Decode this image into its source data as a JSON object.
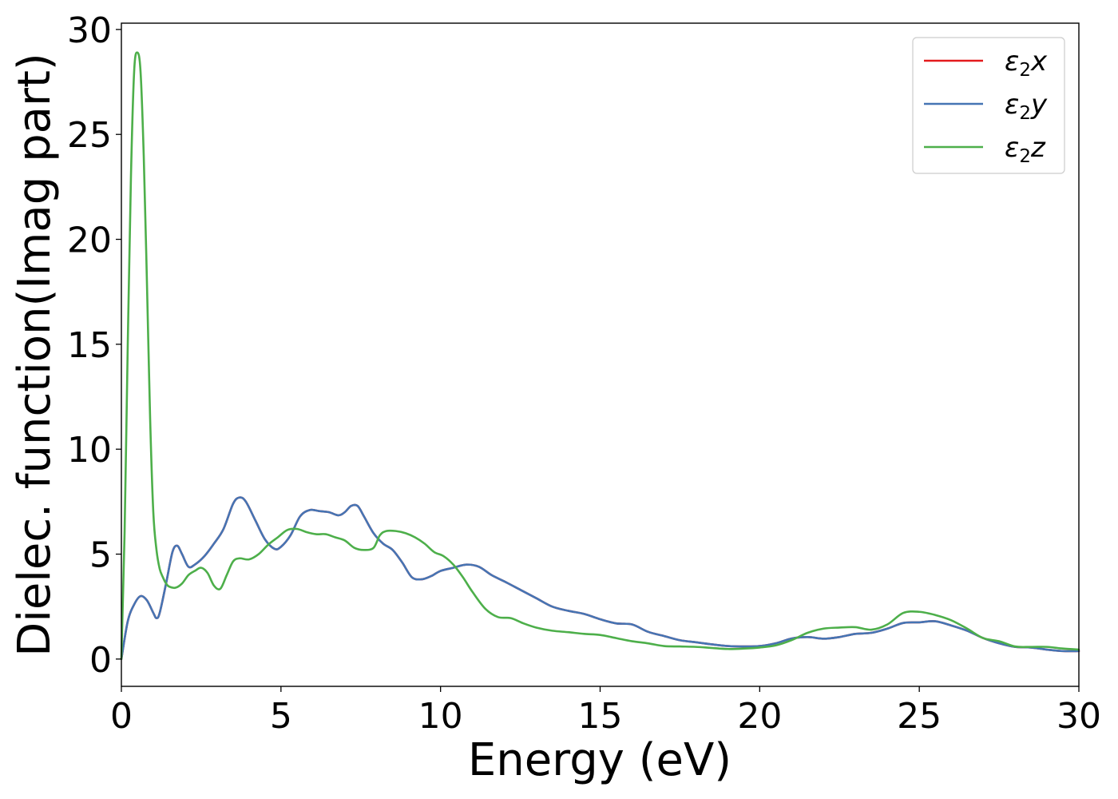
{
  "chart_data": {
    "type": "line",
    "title": "",
    "xlabel": "Energy (eV)",
    "ylabel": "Dielec. function(Imag part)",
    "xlim": [
      0,
      30
    ],
    "ylim": [
      -1.3,
      30.3
    ],
    "xticks": [
      0,
      5,
      10,
      15,
      20,
      25,
      30
    ],
    "yticks": [
      0,
      5,
      10,
      15,
      20,
      25,
      30
    ],
    "grid": false,
    "legend_position": "top-right",
    "series": [
      {
        "name": "ε2x",
        "label_base": "ε",
        "label_sub": "2",
        "label_var": "x",
        "color": "#e31a1c",
        "x": [
          0,
          0.2,
          0.4,
          0.6,
          0.8,
          1.0,
          1.1,
          1.2,
          1.4,
          1.6,
          1.75,
          1.9,
          2.1,
          2.3,
          2.6,
          2.9,
          3.2,
          3.5,
          3.7,
          3.9,
          4.2,
          4.5,
          4.8,
          5.0,
          5.3,
          5.6,
          5.9,
          6.2,
          6.5,
          6.8,
          7.0,
          7.2,
          7.4,
          7.6,
          7.9,
          8.2,
          8.5,
          8.8,
          9.1,
          9.4,
          9.7,
          10.0,
          10.4,
          10.8,
          11.2,
          11.6,
          12.0,
          12.5,
          13.0,
          13.5,
          14.0,
          14.5,
          15.0,
          15.5,
          16.0,
          16.5,
          17.0,
          17.5,
          18.0,
          18.5,
          19.0,
          19.5,
          20.0,
          20.5,
          21.0,
          21.5,
          22.0,
          22.5,
          23.0,
          23.5,
          24.0,
          24.5,
          25.0,
          25.5,
          26.0,
          26.5,
          27.0,
          27.5,
          28.0,
          28.5,
          29.0,
          29.5,
          30.0
        ],
        "y": [
          0,
          1.8,
          2.6,
          3.0,
          2.8,
          2.2,
          1.95,
          2.2,
          3.6,
          5.1,
          5.4,
          5.0,
          4.4,
          4.5,
          4.9,
          5.5,
          6.2,
          7.4,
          7.7,
          7.5,
          6.6,
          5.7,
          5.25,
          5.35,
          5.9,
          6.8,
          7.1,
          7.05,
          7.0,
          6.85,
          7.0,
          7.3,
          7.3,
          6.8,
          6.0,
          5.5,
          5.2,
          4.6,
          3.9,
          3.8,
          3.95,
          4.2,
          4.35,
          4.5,
          4.4,
          4.0,
          3.7,
          3.3,
          2.9,
          2.5,
          2.3,
          2.15,
          1.9,
          1.7,
          1.65,
          1.3,
          1.1,
          0.9,
          0.8,
          0.7,
          0.62,
          0.6,
          0.62,
          0.75,
          0.98,
          1.05,
          0.97,
          1.05,
          1.2,
          1.25,
          1.45,
          1.72,
          1.75,
          1.8,
          1.6,
          1.35,
          1.0,
          0.75,
          0.58,
          0.55,
          0.45,
          0.38,
          0.38
        ]
      },
      {
        "name": "ε2y",
        "label_base": "ε",
        "label_sub": "2",
        "label_var": "y",
        "color": "#4575b4",
        "x": [
          0,
          0.2,
          0.4,
          0.6,
          0.8,
          1.0,
          1.1,
          1.2,
          1.4,
          1.6,
          1.75,
          1.9,
          2.1,
          2.3,
          2.6,
          2.9,
          3.2,
          3.5,
          3.7,
          3.9,
          4.2,
          4.5,
          4.8,
          5.0,
          5.3,
          5.6,
          5.9,
          6.2,
          6.5,
          6.8,
          7.0,
          7.2,
          7.4,
          7.6,
          7.9,
          8.2,
          8.5,
          8.8,
          9.1,
          9.4,
          9.7,
          10.0,
          10.4,
          10.8,
          11.2,
          11.6,
          12.0,
          12.5,
          13.0,
          13.5,
          14.0,
          14.5,
          15.0,
          15.5,
          16.0,
          16.5,
          17.0,
          17.5,
          18.0,
          18.5,
          19.0,
          19.5,
          20.0,
          20.5,
          21.0,
          21.5,
          22.0,
          22.5,
          23.0,
          23.5,
          24.0,
          24.5,
          25.0,
          25.5,
          26.0,
          26.5,
          27.0,
          27.5,
          28.0,
          28.5,
          29.0,
          29.5,
          30.0
        ],
        "y": [
          0,
          1.8,
          2.6,
          3.0,
          2.8,
          2.2,
          1.95,
          2.2,
          3.6,
          5.1,
          5.4,
          5.0,
          4.4,
          4.5,
          4.9,
          5.5,
          6.2,
          7.4,
          7.7,
          7.5,
          6.6,
          5.7,
          5.25,
          5.35,
          5.9,
          6.8,
          7.1,
          7.05,
          7.0,
          6.85,
          7.0,
          7.3,
          7.3,
          6.8,
          6.0,
          5.5,
          5.2,
          4.6,
          3.9,
          3.8,
          3.95,
          4.2,
          4.35,
          4.5,
          4.4,
          4.0,
          3.7,
          3.3,
          2.9,
          2.5,
          2.3,
          2.15,
          1.9,
          1.7,
          1.65,
          1.3,
          1.1,
          0.9,
          0.8,
          0.7,
          0.62,
          0.6,
          0.62,
          0.75,
          0.98,
          1.05,
          0.97,
          1.05,
          1.2,
          1.25,
          1.45,
          1.72,
          1.75,
          1.8,
          1.6,
          1.35,
          1.0,
          0.75,
          0.58,
          0.55,
          0.45,
          0.38,
          0.38
        ]
      },
      {
        "name": "ε2z",
        "label_base": "ε",
        "label_sub": "2",
        "label_var": "z",
        "color": "#4daf4a",
        "x": [
          0,
          0.1,
          0.2,
          0.3,
          0.4,
          0.5,
          0.6,
          0.7,
          0.8,
          0.9,
          1.0,
          1.1,
          1.2,
          1.3,
          1.4,
          1.5,
          1.7,
          1.9,
          2.1,
          2.3,
          2.5,
          2.7,
          2.9,
          3.1,
          3.3,
          3.5,
          3.7,
          4.0,
          4.3,
          4.6,
          4.9,
          5.2,
          5.5,
          5.8,
          6.1,
          6.4,
          6.7,
          7.0,
          7.3,
          7.6,
          7.9,
          8.1,
          8.3,
          8.6,
          8.9,
          9.2,
          9.5,
          9.8,
          10.1,
          10.4,
          10.7,
          11.0,
          11.4,
          11.8,
          12.2,
          12.6,
          13.0,
          13.5,
          14.0,
          14.5,
          15.0,
          15.5,
          16.0,
          16.5,
          17.0,
          17.5,
          18.0,
          18.5,
          19.0,
          19.5,
          20.0,
          20.5,
          21.0,
          21.5,
          22.0,
          22.5,
          23.0,
          23.5,
          24.0,
          24.5,
          25.0,
          25.5,
          26.0,
          26.5,
          27.0,
          27.5,
          28.0,
          28.5,
          29.0,
          29.5,
          30.0
        ],
        "y": [
          0,
          6,
          15,
          23,
          28,
          28.9,
          28,
          24,
          18,
          11.5,
          7.0,
          5.2,
          4.3,
          3.9,
          3.6,
          3.45,
          3.4,
          3.6,
          4.0,
          4.2,
          4.35,
          4.1,
          3.5,
          3.35,
          4.0,
          4.65,
          4.8,
          4.75,
          5.0,
          5.45,
          5.8,
          6.15,
          6.2,
          6.05,
          5.95,
          5.95,
          5.8,
          5.65,
          5.3,
          5.2,
          5.3,
          5.9,
          6.1,
          6.1,
          6.0,
          5.8,
          5.5,
          5.1,
          4.9,
          4.5,
          3.9,
          3.2,
          2.4,
          2.0,
          1.95,
          1.7,
          1.5,
          1.35,
          1.28,
          1.2,
          1.15,
          1.0,
          0.85,
          0.75,
          0.62,
          0.6,
          0.58,
          0.53,
          0.48,
          0.5,
          0.55,
          0.65,
          0.9,
          1.25,
          1.45,
          1.5,
          1.52,
          1.4,
          1.65,
          2.2,
          2.25,
          2.1,
          1.85,
          1.45,
          1.0,
          0.85,
          0.6,
          0.58,
          0.58,
          0.5,
          0.45
        ]
      }
    ]
  }
}
